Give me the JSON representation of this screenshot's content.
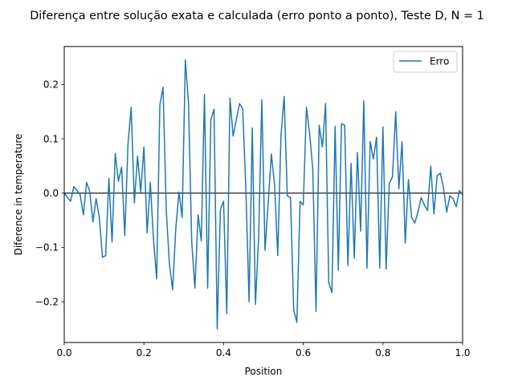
{
  "chart_data": {
    "type": "line",
    "title": "Diferença entre solução exata e calculada (erro ponto a ponto), Teste D, N = 1",
    "xlabel": "Position",
    "ylabel": "Diference in temperature",
    "xlim": [
      0.0,
      1.0
    ],
    "ylim": [
      -0.275,
      0.27
    ],
    "xticks": [
      0.0,
      0.2,
      0.4,
      0.6,
      0.8,
      1.0
    ],
    "xtick_labels": [
      "0.0",
      "0.2",
      "0.4",
      "0.6",
      "0.8",
      "1.0"
    ],
    "yticks": [
      -0.2,
      -0.1,
      0.0,
      0.1,
      0.2
    ],
    "ytick_labels": [
      "−0.2",
      "−0.1",
      "0.0",
      "0.1",
      "0.2"
    ],
    "grid": false,
    "legend": "top-right",
    "reference_line": {
      "y": 0.0,
      "color": "#000000"
    },
    "series": [
      {
        "name": "Erro",
        "color": "#1f77b4",
        "x": [
          0.0,
          0.008,
          0.016,
          0.024,
          0.032,
          0.04,
          0.048,
          0.056,
          0.064,
          0.072,
          0.08,
          0.088,
          0.096,
          0.104,
          0.112,
          0.12,
          0.128,
          0.136,
          0.144,
          0.152,
          0.16,
          0.168,
          0.176,
          0.184,
          0.192,
          0.2,
          0.208,
          0.216,
          0.224,
          0.232,
          0.24,
          0.248,
          0.256,
          0.264,
          0.272,
          0.28,
          0.288,
          0.296,
          0.304,
          0.312,
          0.32,
          0.328,
          0.336,
          0.344,
          0.352,
          0.36,
          0.368,
          0.376,
          0.384,
          0.392,
          0.4,
          0.408,
          0.416,
          0.424,
          0.432,
          0.44,
          0.448,
          0.456,
          0.464,
          0.472,
          0.48,
          0.488,
          0.496,
          0.504,
          0.512,
          0.52,
          0.528,
          0.536,
          0.544,
          0.552,
          0.56,
          0.568,
          0.576,
          0.584,
          0.592,
          0.6,
          0.608,
          0.616,
          0.624,
          0.632,
          0.64,
          0.648,
          0.656,
          0.664,
          0.672,
          0.68,
          0.688,
          0.696,
          0.704,
          0.712,
          0.72,
          0.728,
          0.736,
          0.744,
          0.752,
          0.76,
          0.768,
          0.776,
          0.784,
          0.792,
          0.8,
          0.808,
          0.816,
          0.824,
          0.832,
          0.84,
          0.848,
          0.856,
          0.864,
          0.872,
          0.88,
          0.888,
          0.896,
          0.904,
          0.912,
          0.92,
          0.928,
          0.936,
          0.944,
          0.952,
          0.96,
          0.968,
          0.976,
          0.984,
          0.992,
          1.0
        ],
        "y": [
          0.0,
          -0.008,
          -0.015,
          0.012,
          0.005,
          -0.003,
          -0.04,
          0.02,
          0.003,
          -0.053,
          -0.01,
          -0.045,
          -0.118,
          -0.115,
          0.027,
          -0.09,
          0.073,
          0.022,
          0.048,
          -0.078,
          0.09,
          0.158,
          -0.018,
          0.068,
          0.002,
          0.085,
          -0.073,
          0.02,
          -0.085,
          -0.158,
          0.162,
          0.195,
          -0.03,
          -0.13,
          -0.178,
          -0.065,
          0.002,
          -0.045,
          0.245,
          0.165,
          -0.09,
          -0.175,
          -0.04,
          -0.088,
          0.182,
          -0.175,
          0.135,
          0.155,
          -0.25,
          -0.03,
          -0.015,
          -0.222,
          0.175,
          0.105,
          0.135,
          0.165,
          0.155,
          0.005,
          -0.2,
          0.12,
          -0.205,
          -0.08,
          0.172,
          -0.105,
          -0.018,
          0.072,
          0.015,
          -0.115,
          0.105,
          0.178,
          -0.005,
          -0.008,
          -0.215,
          -0.238,
          -0.015,
          -0.022,
          0.158,
          0.11,
          0.043,
          -0.218,
          0.125,
          0.085,
          0.165,
          -0.165,
          -0.183,
          0.123,
          -0.142,
          0.128,
          0.125,
          -0.133,
          0.055,
          -0.12,
          0.075,
          -0.07,
          0.17,
          -0.138,
          0.095,
          0.063,
          0.103,
          -0.138,
          0.122,
          -0.14,
          0.018,
          0.03,
          0.15,
          0.008,
          0.095,
          -0.092,
          0.025,
          -0.045,
          -0.055,
          -0.035,
          -0.008,
          -0.022,
          -0.032,
          0.05,
          -0.038,
          0.032,
          0.037,
          0.01,
          -0.035,
          -0.005,
          -0.01,
          -0.025,
          0.005,
          -0.003
        ]
      }
    ]
  }
}
